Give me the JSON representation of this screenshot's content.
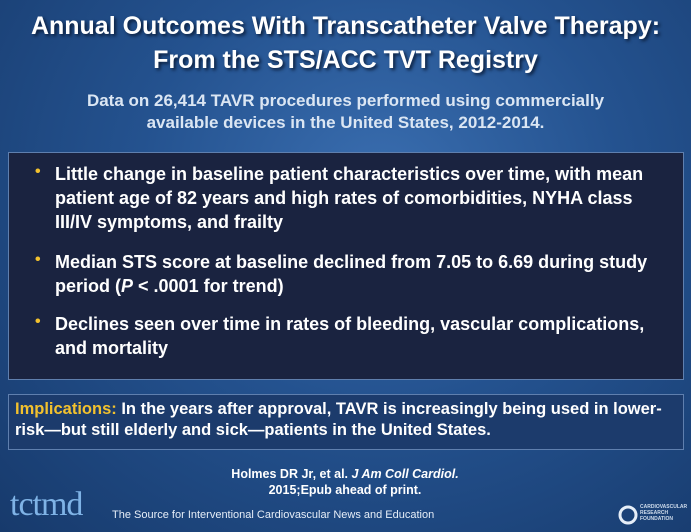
{
  "title": [
    "Annual Outcomes With Transcatheter Valve Therapy:",
    "From the STS/ACC TVT Registry"
  ],
  "subtitle": [
    "Data on 26,414 TAVR procedures performed using commercially",
    "available devices in the United States, 2012-2014."
  ],
  "bullets": [
    [
      "Little change in baseline patient characteristics over time, with mean patient age of 82 years and high rates of comorbidities, NYHA class III/IV symptoms, and frailty"
    ],
    [
      "Median STS score at baseline declined from 7.05 to 6.69 during study period (",
      "P",
      " < .0001 for trend)"
    ],
    [
      "Declines seen over time in rates of bleeding, vascular complications, and mortality"
    ]
  ],
  "implications": {
    "label": "Implications:",
    "text": " In the years after approval, TAVR is increasingly being used in lower-risk—but still elderly and sick—patients in the United States."
  },
  "citation": [
    "Holmes DR Jr, et al. ",
    "J Am Coll Cardiol.",
    "2015;Epub ahead of print."
  ],
  "footer": {
    "logo": "tctmd",
    "tagline": "The Source for Interventional Cardiovascular News and Education",
    "partner": [
      "CARDIOVASCULAR",
      "RESEARCH",
      "FOUNDATION"
    ]
  }
}
